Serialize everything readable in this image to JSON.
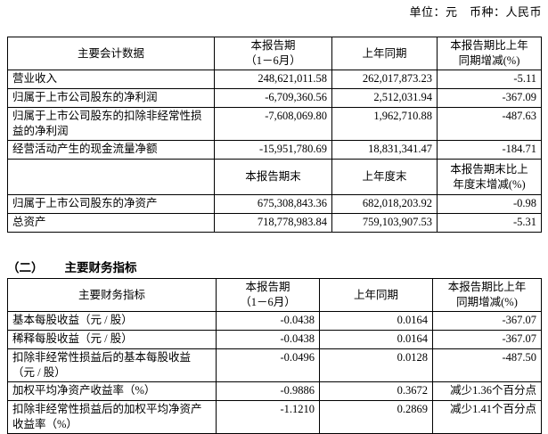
{
  "meta": {
    "unit_line": "单位：元　币种：人民币"
  },
  "section2": {
    "number": "（二）",
    "title": "主要财务指标"
  },
  "table1": {
    "columns": {
      "c1": "主要会计数据",
      "c2": "本报告期\n（1－6月）",
      "c3": "上年同期",
      "c4": "本报告期比上年\n同期增减(%)"
    },
    "rows": [
      {
        "label": "营业收入",
        "current": "248,621,011.58",
        "prior": "262,017,873.23",
        "change": "-5.11"
      },
      {
        "label": "归属于上市公司股东的净利润",
        "current": "-6,709,360.56",
        "prior": "2,512,031.94",
        "change": "-367.09"
      },
      {
        "label": "归属于上市公司股东的扣除非经常性损益的净利润",
        "current": "-7,608,069.80",
        "prior": "1,962,710.88",
        "change": "-487.63"
      },
      {
        "label": "经营活动产生的现金流量净额",
        "current": "-15,951,780.69",
        "prior": "18,831,341.47",
        "change": "-184.71"
      }
    ],
    "subheader": {
      "c1": "",
      "c2": "本报告期末",
      "c3": "上年度末",
      "c4": "本报告期末比上\n年度末增减(%)"
    },
    "rows2": [
      {
        "label": "归属于上市公司股东的净资产",
        "current": "675,308,843.36",
        "prior": "682,018,203.92",
        "change": "-0.98"
      },
      {
        "label": "总资产",
        "current": "718,778,983.84",
        "prior": "759,103,907.53",
        "change": "-5.31"
      }
    ]
  },
  "table2": {
    "columns": {
      "c1": "主要财务指标",
      "c2": "本报告期\n（1－6月）",
      "c3": "上年同期",
      "c4": "本报告期比上年\n同期增减(%)"
    },
    "rows": [
      {
        "label": "基本每股收益（元 / 股）",
        "current": "-0.0438",
        "prior": "0.0164",
        "change": "-367.07"
      },
      {
        "label": "稀释每股收益（元 / 股）",
        "current": "-0.0438",
        "prior": "0.0164",
        "change": "-367.07"
      },
      {
        "label": "扣除非经常性损益后的基本每股收益（元 / 股）",
        "current": "-0.0496",
        "prior": "0.0128",
        "change": "-487.50"
      },
      {
        "label": "加权平均净资产收益率（%）",
        "current": "-0.9886",
        "prior": "0.3672",
        "change": "减少1.36个百分点"
      },
      {
        "label": "扣除非经常性损益后的加权平均净资产收益率（%）",
        "current": "-1.1210",
        "prior": "0.2869",
        "change": "减少1.41个百分点"
      }
    ]
  }
}
